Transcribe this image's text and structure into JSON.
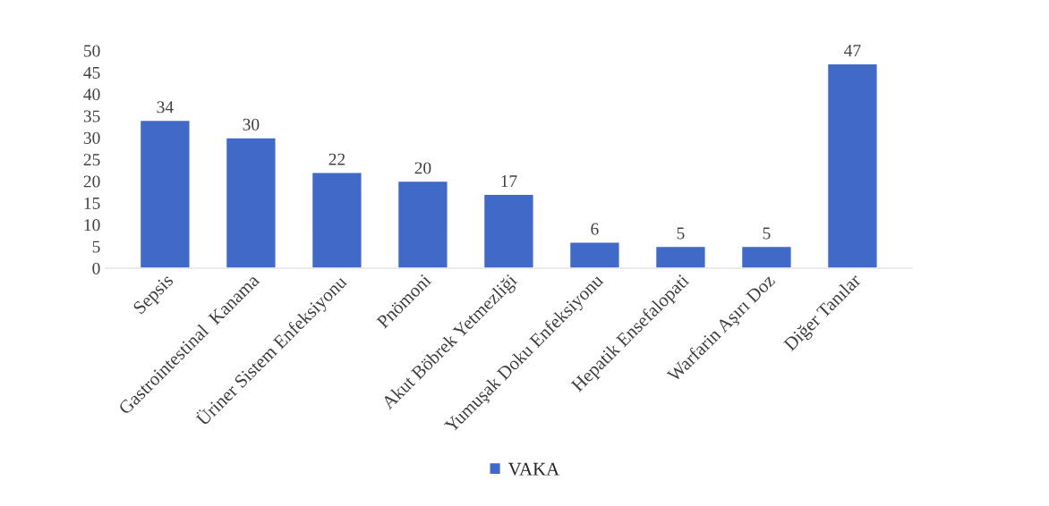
{
  "chart_data": {
    "type": "bar",
    "categories": [
      "Sepsis",
      "Gastrointestinal  Kanama",
      "Üriner Sistem Enfeksiyonu",
      "Pnömoni",
      "Akut Böbrek Yetmezliği",
      "Yumuşak Doku Enfeksiyonu",
      "Hepatik Ensefalopati",
      "Warfarin Aşırı Doz",
      "Diğer Tanılar"
    ],
    "series": [
      {
        "name": "VAKA",
        "color": "#4169c8",
        "values": [
          34,
          30,
          22,
          20,
          17,
          6,
          5,
          5,
          47
        ]
      }
    ],
    "ylim": [
      0,
      50
    ],
    "yticks": [
      0,
      5,
      10,
      15,
      20,
      25,
      30,
      35,
      40,
      45,
      50
    ],
    "data_labels": true,
    "grid": false,
    "legend": "bottom"
  }
}
